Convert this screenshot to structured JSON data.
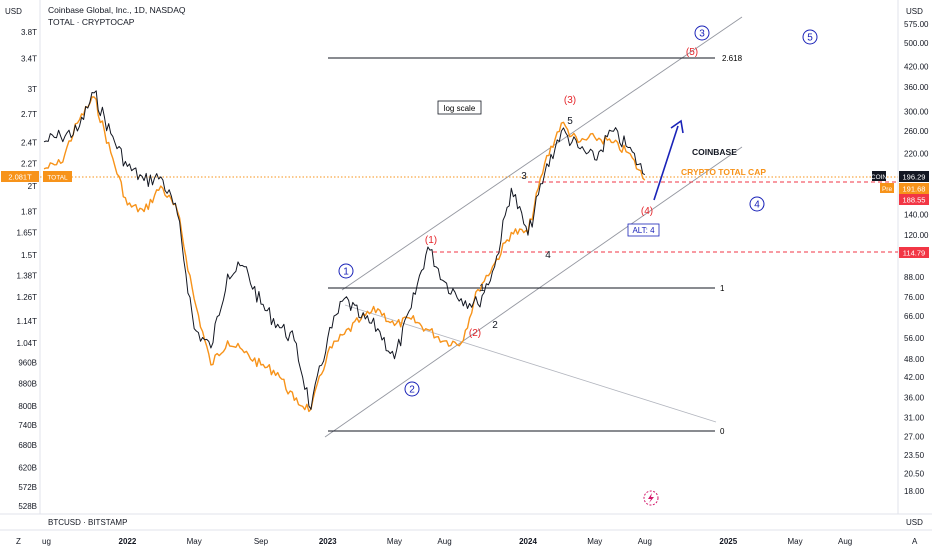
{
  "header": {
    "title": "Coinbase Global, Inc., 1D, NASDAQ",
    "subtitle": "TOTAL · CRYPTOCAP",
    "left_currency": "USD",
    "right_currency": "USD",
    "bottom_symbol": "BTCUSD · BITSTAMP",
    "bottom_right_currency": "USD",
    "z_button": "Z",
    "a_button": "A"
  },
  "colors": {
    "coin_line": "#131722",
    "total_line": "#f7931a",
    "wave_red": "#e5252a",
    "wave_blue": "#1a23b8",
    "channel": "#9598a1",
    "fib": "#131722",
    "red_level": "#f23645",
    "arrow": "#1a23b8",
    "pink": "#d3186b"
  },
  "chart_data": {
    "type": "line",
    "title": "Coinbase Global, Inc., 1D, NASDAQ",
    "x_ticks": [
      "2022",
      "May",
      "Sep",
      "2023",
      "May",
      "Aug",
      "2024",
      "May",
      "Aug",
      "2025",
      "May",
      "Aug"
    ],
    "x_first_tick": "ug",
    "y_right_ticks": [
      "575.00",
      "500.00",
      "420.00",
      "360.00",
      "300.00",
      "260.00",
      "220.00",
      "160.00",
      "140.00",
      "120.00",
      "104.00",
      "88.00",
      "76.00",
      "66.00",
      "56.00",
      "48.00",
      "42.00",
      "36.00",
      "31.00",
      "27.00",
      "23.50",
      "20.50",
      "18.00"
    ],
    "y_left_ticks": [
      "3.8T",
      "3.4T",
      "3T",
      "2.7T",
      "2.4T",
      "2.2T",
      "2T",
      "1.8T",
      "1.65T",
      "1.5T",
      "1.38T",
      "1.26T",
      "1.14T",
      "1.04T",
      "960B",
      "880B",
      "800B",
      "740B",
      "680B",
      "620B",
      "572B",
      "528B"
    ],
    "log_scale": true,
    "series": [
      {
        "name": "COIN",
        "x": [
          "2021-08",
          "2021-09",
          "2021-10",
          "2021-11",
          "2021-12",
          "2022-01",
          "2022-02",
          "2022-03",
          "2022-04",
          "2022-05",
          "2022-06",
          "2022-07",
          "2022-08",
          "2022-09",
          "2022-10",
          "2022-11",
          "2022-12",
          "2023-01",
          "2023-02",
          "2023-03",
          "2023-04",
          "2023-05",
          "2023-06",
          "2023-07",
          "2023-08",
          "2023-09",
          "2023-10",
          "2023-11",
          "2023-12",
          "2024-01",
          "2024-02",
          "2024-03",
          "2024-04",
          "2024-05",
          "2024-06",
          "2024-07",
          "2024-08"
        ],
        "values": [
          240,
          250,
          260,
          345,
          255,
          200,
          180,
          185,
          140,
          60,
          52,
          90,
          95,
          72,
          62,
          55,
          33,
          56,
          75,
          65,
          60,
          48,
          70,
          110,
          85,
          75,
          72,
          95,
          170,
          120,
          190,
          260,
          230,
          210,
          260,
          230,
          188
        ]
      },
      {
        "name": "TOTAL",
        "x": [
          "2021-08",
          "2021-09",
          "2021-10",
          "2021-11",
          "2021-12",
          "2022-01",
          "2022-02",
          "2022-03",
          "2022-04",
          "2022-05",
          "2022-06",
          "2022-07",
          "2022-08",
          "2022-09",
          "2022-10",
          "2022-11",
          "2022-12",
          "2023-01",
          "2023-02",
          "2023-03",
          "2023-04",
          "2023-05",
          "2023-06",
          "2023-07",
          "2023-08",
          "2023-09",
          "2023-10",
          "2023-11",
          "2023-12",
          "2024-01",
          "2024-02",
          "2024-03",
          "2024-04",
          "2024-05",
          "2024-06",
          "2024-07",
          "2024-08"
        ],
        "values": [
          2.15,
          2.2,
          2.6,
          2.9,
          2.3,
          1.85,
          1.8,
          2.0,
          1.8,
          1.25,
          0.95,
          1.05,
          1.0,
          0.95,
          0.92,
          0.82,
          0.79,
          1.0,
          1.08,
          1.15,
          1.2,
          1.12,
          1.15,
          1.1,
          1.05,
          1.04,
          1.3,
          1.45,
          1.65,
          1.65,
          2.2,
          2.6,
          2.4,
          2.45,
          2.4,
          2.3,
          2.05
        ]
      }
    ],
    "fib_levels": [
      {
        "label": "2.618",
        "price": 480
      },
      {
        "label": "1",
        "price": 88
      },
      {
        "label": "0",
        "price": 31
      }
    ],
    "price_labels": {
      "coin_sym": "COIN",
      "coin_val": "196.29",
      "pre_tag": "Pre",
      "pre_val": "191.68",
      "red_val": "188.55",
      "level_val": "114.79",
      "total_val": "2.081T",
      "total_tag": "TOTAL"
    },
    "annotations": {
      "log_scale": "log scale",
      "coinbase": "COINBASE",
      "crypto_total_cap": "CRYPTO TOTAL CAP",
      "alt4": "ALT: 4",
      "blue_waves": [
        "1",
        "2",
        "3",
        "4",
        "5"
      ],
      "red_waves": [
        "(1)",
        "(2)",
        "(3)",
        "(4)",
        "(5)"
      ],
      "black_waves": [
        "1",
        "2",
        "3",
        "4",
        "5"
      ]
    }
  }
}
